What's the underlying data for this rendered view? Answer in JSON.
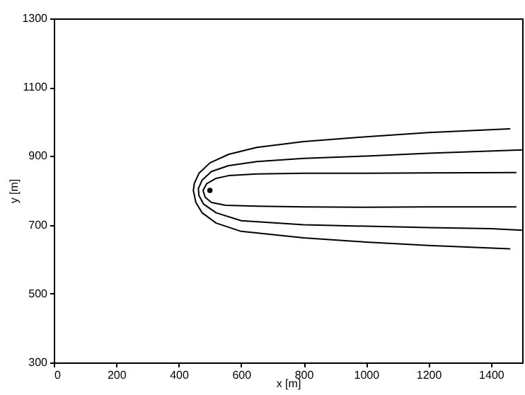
{
  "chart_data": {
    "type": "line",
    "xlabel": "x [m]",
    "ylabel": "y [m]",
    "xlim": [
      0,
      1500
    ],
    "ylim": [
      300,
      1300
    ],
    "xticks": [
      0,
      200,
      400,
      600,
      800,
      1000,
      1200,
      1400
    ],
    "yticks": [
      300,
      500,
      700,
      900,
      1100,
      1300
    ],
    "grid": false,
    "marker": "none",
    "line_style": "solid",
    "series": [
      {
        "color": "#000000",
        "x": [
          1460,
          1200,
          1000,
          800,
          650,
          560,
          500,
          465,
          450,
          447,
          455,
          475,
          520,
          600,
          800,
          1000,
          1200,
          1460
        ],
        "values": [
          979,
          968,
          956,
          942,
          925,
          905,
          880,
          850,
          820,
          800,
          765,
          735,
          705,
          681,
          662,
          650,
          640,
          630
        ]
      },
      {
        "color": "#000000",
        "x": [
          1500,
          1200,
          1000,
          800,
          650,
          560,
          505,
          475,
          463,
          465,
          480,
          520,
          600,
          800,
          1000,
          1200,
          1400,
          1500
        ],
        "values": [
          918,
          908,
          900,
          893,
          884,
          872,
          855,
          830,
          805,
          785,
          760,
          735,
          712,
          700,
          696,
          692,
          689,
          684
        ]
      },
      {
        "color": "#000000",
        "x": [
          1480,
          1200,
          1000,
          800,
          650,
          560,
          520,
          490,
          478,
          485,
          505,
          550,
          650,
          800,
          1000,
          1200,
          1480
        ],
        "values": [
          852,
          851,
          850,
          850,
          848,
          843,
          835,
          820,
          800,
          780,
          765,
          757,
          754,
          752,
          751,
          752,
          752
        ]
      },
      {
        "type": "scatter",
        "marker": "circle",
        "color": "#000000",
        "x": [
          500
        ],
        "values": [
          800
        ]
      }
    ]
  }
}
